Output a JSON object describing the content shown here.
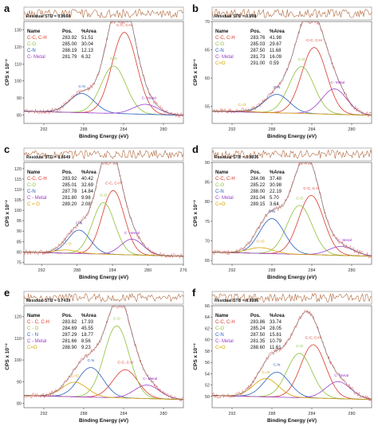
{
  "chart_data": [
    {
      "type": "line",
      "panel_label": "a",
      "residual_label": "Residual STD = 0.8668",
      "xlabel": "Binding Energy (eV)",
      "ylabel": "CPS x 10⁻²",
      "xlim": [
        294,
        278
      ],
      "ylim": [
        75,
        135
      ],
      "x_ticks": [
        292,
        288,
        284,
        280
      ],
      "y_ticks": [
        80,
        90,
        100,
        110,
        120,
        130
      ],
      "table_header": [
        "Name",
        "Pos.",
        "%Area"
      ],
      "components": [
        {
          "name": "C-C, C-H",
          "pos": 283.92,
          "area": 51.51,
          "color": "#d93a2b"
        },
        {
          "name": "C-O",
          "pos": 285.0,
          "area": 30.04,
          "color": "#8fbf3a"
        },
        {
          "name": "C-N",
          "pos": 288.19,
          "area": 12.13,
          "color": "#2a5fbf"
        },
        {
          "name": "C- Metal",
          "pos": 281.79,
          "area": 6.32,
          "color": "#9b3ec8"
        }
      ],
      "peak_labels": [
        {
          "text": "C-C, C-H",
          "color": "#d93a2b"
        },
        {
          "text": "C-O",
          "color": "#8fbf3a"
        },
        {
          "text": "C-N",
          "color": "#2a5fbf"
        },
        {
          "text": "C- Metal",
          "color": "#9b3ec8"
        }
      ]
    },
    {
      "type": "line",
      "panel_label": "b",
      "residual_label": "Residual STD = 0.998",
      "xlabel": "Binding Energy (eV)",
      "ylabel": "CPS x 10⁻²",
      "xlim": [
        294,
        278
      ],
      "ylim": [
        52,
        70
      ],
      "x_ticks": [
        292,
        288,
        284,
        280
      ],
      "y_ticks": [
        55,
        60,
        65,
        70
      ],
      "table_header": [
        "Name",
        "Pos.",
        "%Area"
      ],
      "components": [
        {
          "name": "C-C, C-H",
          "pos": 283.76,
          "area": 41.98,
          "color": "#d93a2b"
        },
        {
          "name": "C-O",
          "pos": 285.03,
          "area": 29.67,
          "color": "#8fbf3a"
        },
        {
          "name": "C-N",
          "pos": 287.5,
          "area": 11.68,
          "color": "#2a5fbf"
        },
        {
          "name": "C- Metal",
          "pos": 281.73,
          "area": 16.09,
          "color": "#9b3ec8"
        },
        {
          "name": "C=O",
          "pos": 291.0,
          "area": 0.59,
          "color": "#d9a400"
        }
      ],
      "peak_labels": [
        {
          "text": "C-C, C-H",
          "color": "#d93a2b"
        },
        {
          "text": "C-O",
          "color": "#8fbf3a"
        },
        {
          "text": "C-N",
          "color": "#2a5fbf"
        },
        {
          "text": "C- Metal",
          "color": "#9b3ec8"
        },
        {
          "text": "C=O",
          "color": "#d9a400"
        }
      ]
    },
    {
      "type": "line",
      "panel_label": "c",
      "residual_label": "Residual STD = 0.8649",
      "xlabel": "Binding Energy (eV)",
      "ylabel": "CPS x 10⁻²",
      "xlim": [
        294,
        276
      ],
      "ylim": [
        74,
        123
      ],
      "x_ticks": [
        292,
        288,
        284,
        280,
        276
      ],
      "y_ticks": [
        75,
        80,
        85,
        90,
        95,
        100,
        105,
        110,
        115,
        120
      ],
      "table_header": [
        "Name",
        "Pos.",
        "%Area"
      ],
      "components": [
        {
          "name": "C-C, C-H",
          "pos": 283.92,
          "area": 40.42,
          "color": "#d93a2b"
        },
        {
          "name": "C-O",
          "pos": 285.01,
          "area": 32.69,
          "color": "#8fbf3a"
        },
        {
          "name": "C-N",
          "pos": 287.78,
          "area": 14.84,
          "color": "#2a5fbf"
        },
        {
          "name": "C - Metal",
          "pos": 281.8,
          "area": 9.98,
          "color": "#9b3ec8"
        },
        {
          "name": "C = O",
          "pos": 289.2,
          "area": 2.08,
          "color": "#d9a400"
        }
      ],
      "peak_labels": [
        {
          "text": "C-C, C-H",
          "color": "#d93a2b"
        },
        {
          "text": "C-O",
          "color": "#8fbf3a"
        },
        {
          "text": "C-N",
          "color": "#2a5fbf"
        },
        {
          "text": "C - Metal",
          "color": "#9b3ec8"
        },
        {
          "text": "C = O",
          "color": "#d9a400"
        }
      ]
    },
    {
      "type": "line",
      "panel_label": "d",
      "residual_label": "Residual STD = 0.8035",
      "xlabel": "Binding Energy (eV)",
      "ylabel": "CPS x 10⁻²",
      "xlim": [
        294,
        278
      ],
      "ylim": [
        64,
        90
      ],
      "x_ticks": [
        292,
        288,
        284,
        280
      ],
      "y_ticks": [
        65,
        70,
        75,
        80,
        85,
        90
      ],
      "table_header": [
        "Name",
        "Pos.",
        "%Area"
      ],
      "components": [
        {
          "name": "C-C, C-H",
          "pos": 284.06,
          "area": 37.48,
          "color": "#d93a2b"
        },
        {
          "name": "C-O",
          "pos": 285.22,
          "area": 30.98,
          "color": "#8fbf3a"
        },
        {
          "name": "C-N",
          "pos": 288.0,
          "area": 22.19,
          "color": "#2a5fbf"
        },
        {
          "name": "C- Metal",
          "pos": 281.04,
          "area": 5.7,
          "color": "#9b3ec8"
        },
        {
          "name": "C=O",
          "pos": 289.15,
          "area": 3.64,
          "color": "#d9a400"
        }
      ],
      "peak_labels": [
        {
          "text": "C-C, C-H",
          "color": "#d93a2b"
        },
        {
          "text": "C-O",
          "color": "#8fbf3a"
        },
        {
          "text": "C-N",
          "color": "#2a5fbf"
        },
        {
          "text": "C- Metal",
          "color": "#9b3ec8"
        },
        {
          "text": "C=O",
          "color": "#d9a400"
        }
      ]
    },
    {
      "type": "line",
      "panel_label": "e",
      "residual_label": "Residual STD = 0.7439",
      "xlabel": "Binding Energy (eV)",
      "ylabel": "CPS x 10⁻²",
      "xlim": [
        294,
        278
      ],
      "ylim": [
        78,
        125
      ],
      "x_ticks": [
        292,
        288,
        284,
        280
      ],
      "y_ticks": [
        80,
        90,
        100,
        110,
        120
      ],
      "table_header": [
        "Name",
        "Pos.",
        "%Area"
      ],
      "components": [
        {
          "name": "C - C, C-H",
          "pos": 283.82,
          "area": 17.93,
          "color": "#d93a2b"
        },
        {
          "name": "C - O",
          "pos": 284.69,
          "area": 45.55,
          "color": "#8fbf3a"
        },
        {
          "name": "C - N",
          "pos": 287.29,
          "area": 18.77,
          "color": "#2a5fbf"
        },
        {
          "name": "C - Metal",
          "pos": 281.66,
          "area": 8.56,
          "color": "#9b3ec8"
        },
        {
          "name": "C=O",
          "pos": 288.9,
          "area": 9.23,
          "color": "#d9a400"
        }
      ],
      "peak_labels": [
        {
          "text": "C-C, C-H",
          "color": "#d93a2b"
        },
        {
          "text": "C-O",
          "color": "#8fbf3a"
        },
        {
          "text": "C-N",
          "color": "#2a5fbf"
        },
        {
          "text": "C- Metal",
          "color": "#9b3ec8"
        },
        {
          "text": "C=O",
          "color": "#d9a400"
        }
      ]
    },
    {
      "type": "line",
      "panel_label": "f",
      "residual_label": "Residual STD = 0.9286",
      "xlabel": "Binding Energy (eV)",
      "ylabel": "CPS x 10⁻²",
      "xlim": [
        294,
        278
      ],
      "ylim": [
        48,
        66
      ],
      "x_ticks": [
        292,
        288,
        284,
        280
      ],
      "y_ticks": [
        50,
        52,
        54,
        56,
        58,
        60,
        62,
        64,
        66
      ],
      "table_header": [
        "Name",
        "Pos.",
        "%Area"
      ],
      "components": [
        {
          "name": "C-C, C-H",
          "pos": 283.86,
          "area": 33.74,
          "color": "#d93a2b"
        },
        {
          "name": "C-O",
          "pos": 285.24,
          "area": 28.05,
          "color": "#8fbf3a"
        },
        {
          "name": "C-N",
          "pos": 287.5,
          "area": 15.81,
          "color": "#2a5fbf"
        },
        {
          "name": "C- Metal",
          "pos": 281.35,
          "area": 10.79,
          "color": "#9b3ec8"
        },
        {
          "name": "C=O",
          "pos": 288.6,
          "area": 11.61,
          "color": "#d9a400"
        }
      ],
      "peak_labels": [
        {
          "text": "C-C, C-H",
          "color": "#d93a2b"
        },
        {
          "text": "C-O",
          "color": "#8fbf3a"
        },
        {
          "text": "C-N",
          "color": "#2a5fbf"
        },
        {
          "text": "C- Metal",
          "color": "#9b3ec8"
        },
        {
          "text": "C=O",
          "color": "#d9a400"
        }
      ]
    }
  ]
}
